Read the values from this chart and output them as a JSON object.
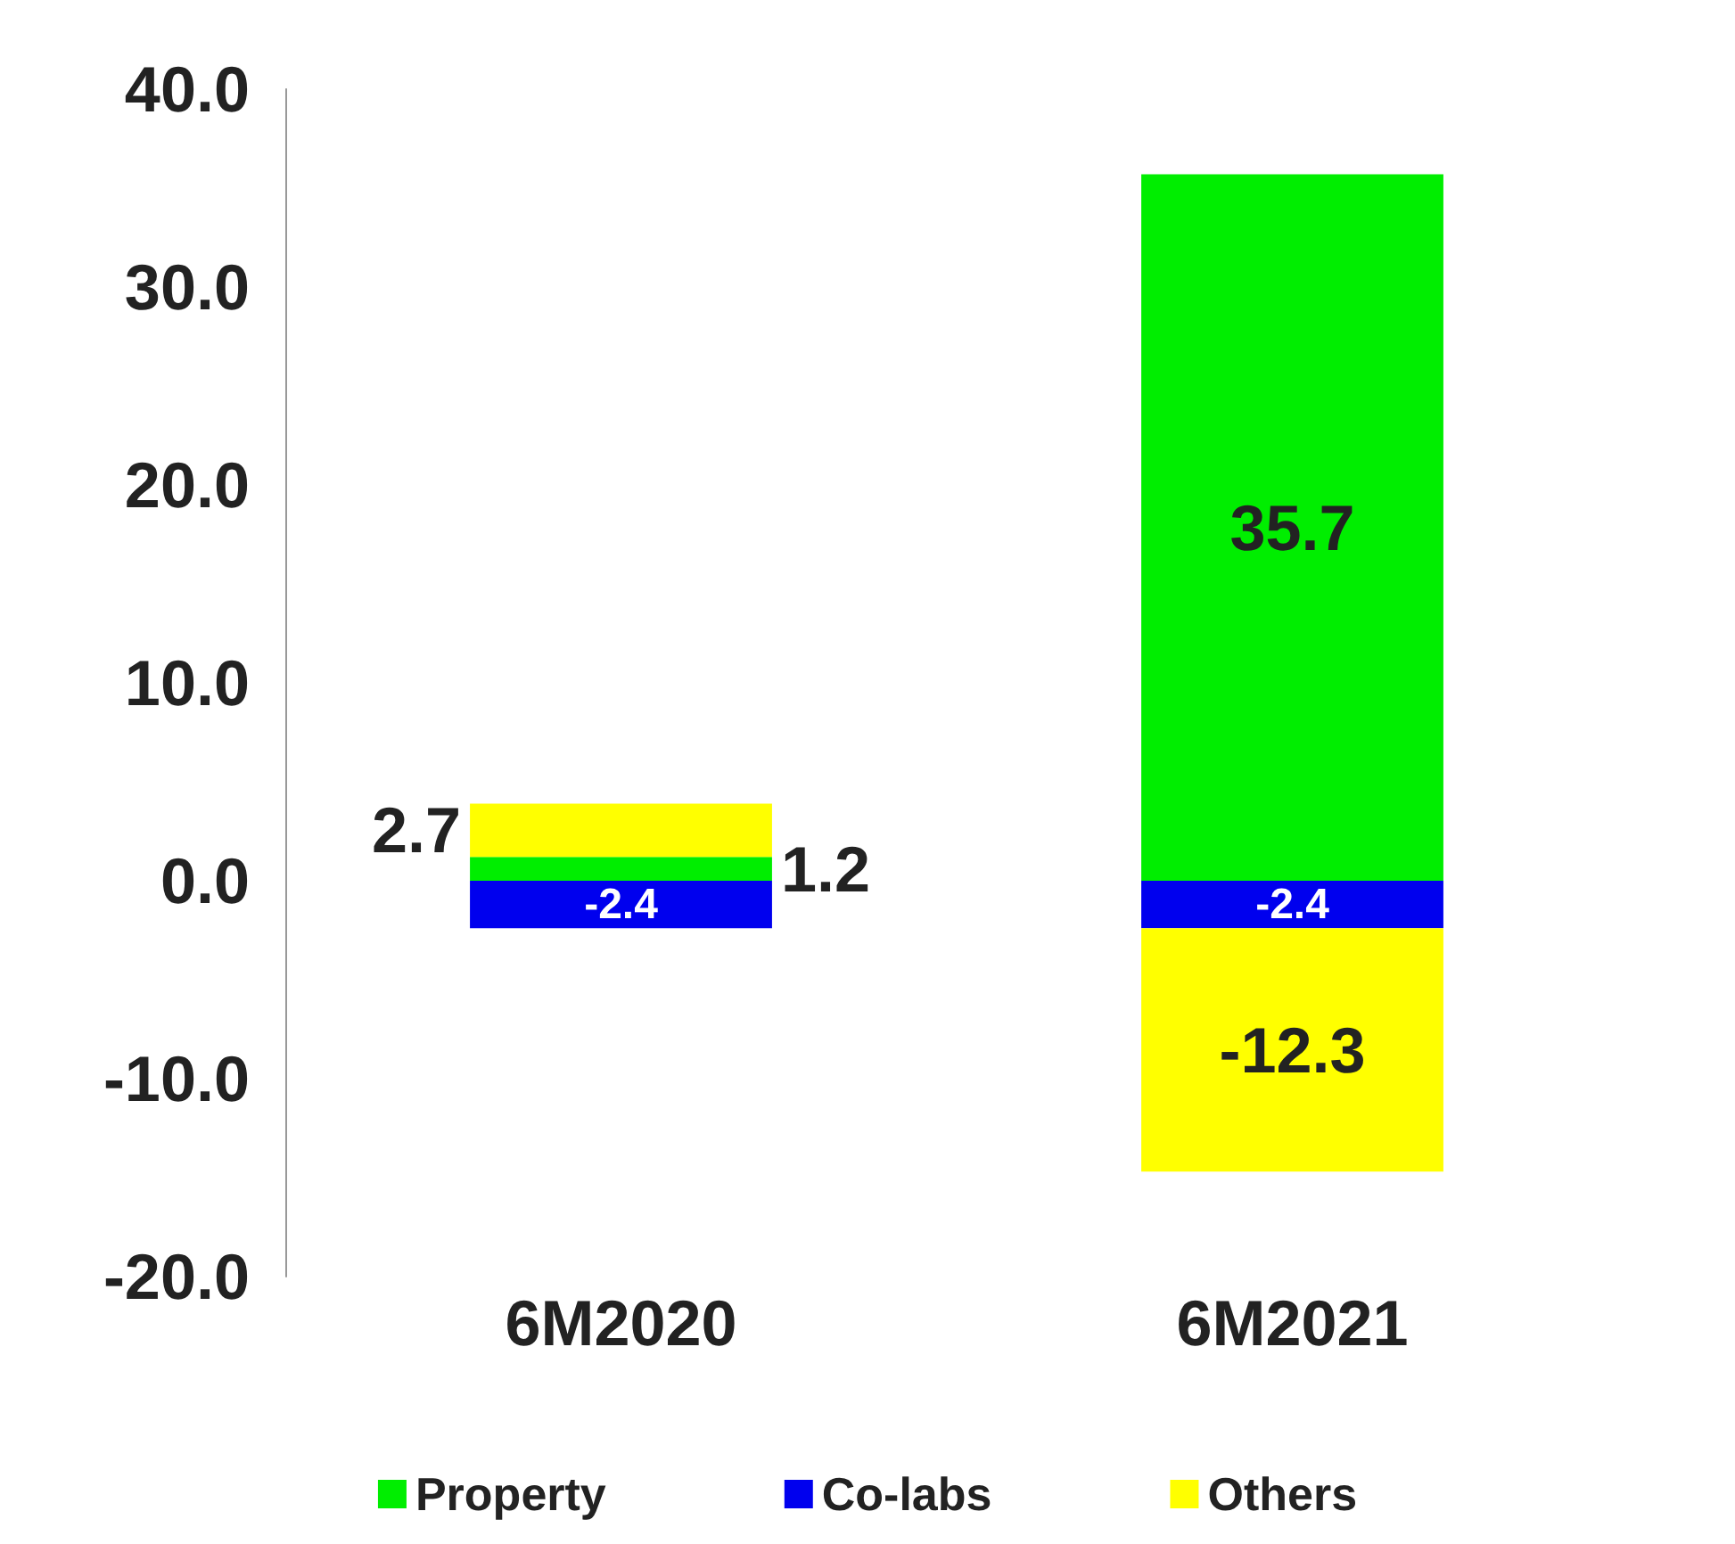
{
  "chart_data": {
    "type": "bar",
    "stacked": true,
    "categories": [
      "6M2020",
      "6M2021"
    ],
    "series": [
      {
        "name": "Property",
        "color": "#00ee00",
        "values": [
          1.2,
          35.7
        ]
      },
      {
        "name": "Co-labs",
        "color": "#0000ee",
        "values": [
          -2.4,
          -2.4
        ]
      },
      {
        "name": "Others",
        "color": "#ffff00",
        "values": [
          2.7,
          -12.3
        ]
      }
    ],
    "ylim": [
      -20,
      40
    ],
    "yticks": [
      {
        "value": -20,
        "label": "-20.0"
      },
      {
        "value": -10,
        "label": "-10.0"
      },
      {
        "value": 0,
        "label": "0.0"
      },
      {
        "value": 10,
        "label": "10.0"
      },
      {
        "value": 20,
        "label": "20.0"
      },
      {
        "value": 30,
        "label": "30.0"
      },
      {
        "value": 40,
        "label": "40.0"
      }
    ],
    "data_labels": true,
    "legend": "bottom",
    "grid": false
  }
}
